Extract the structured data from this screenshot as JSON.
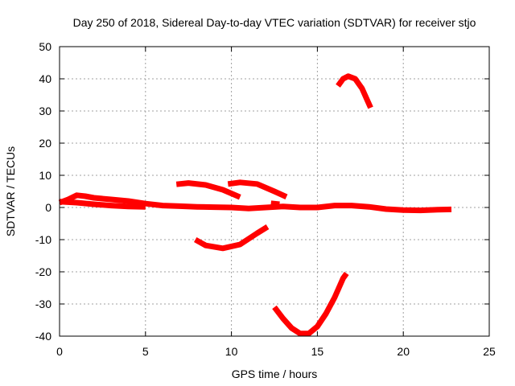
{
  "chart_data": {
    "type": "line",
    "title": "Day 250 of 2018, Sidereal Day-to-day VTEC variation (SDTVAR) for receiver stjo",
    "xlabel": "GPS time / hours",
    "ylabel": "SDTVAR / TECUs",
    "xlim": [
      0,
      25
    ],
    "ylim": [
      -40,
      50
    ],
    "xticks": [
      0,
      5,
      10,
      15,
      20,
      25
    ],
    "yticks": [
      -40,
      -30,
      -20,
      -10,
      0,
      10,
      20,
      30,
      40,
      50
    ],
    "grid": true,
    "legend": "none",
    "colors": {
      "series": "#ff0000",
      "grid": "#a0a0a0",
      "axes": "#000000"
    },
    "series": [
      {
        "values": [
          [
            0,
            1.5
          ],
          [
            0.5,
            2.5
          ],
          [
            1,
            3.8
          ],
          [
            1.5,
            3.5
          ],
          [
            2,
            3
          ],
          [
            3,
            2.5
          ],
          [
            4,
            2
          ],
          [
            5,
            1.2
          ],
          [
            6,
            0.6
          ],
          [
            7,
            0.4
          ],
          [
            8,
            0.2
          ],
          [
            9,
            0.1
          ],
          [
            10,
            0
          ],
          [
            11,
            -0.3
          ],
          [
            12,
            0
          ],
          [
            13,
            0.3
          ],
          [
            14,
            0
          ],
          [
            15,
            0
          ],
          [
            16,
            0.6
          ],
          [
            17,
            0.6
          ],
          [
            18,
            0.2
          ],
          [
            19,
            -0.5
          ],
          [
            20,
            -0.8
          ],
          [
            21,
            -0.9
          ],
          [
            22,
            -0.7
          ],
          [
            22.8,
            -0.6
          ]
        ]
      },
      {
        "values": [
          [
            0,
            1.8
          ],
          [
            1,
            1.5
          ],
          [
            2,
            1
          ],
          [
            3,
            0.6
          ],
          [
            4,
            0.3
          ],
          [
            5,
            0.2
          ]
        ]
      },
      {
        "values": [
          [
            6.8,
            7.2
          ],
          [
            7.5,
            7.6
          ],
          [
            8.5,
            7
          ],
          [
            9.5,
            5.5
          ],
          [
            10.5,
            3.2
          ]
        ]
      },
      {
        "values": [
          [
            9.8,
            7.3
          ],
          [
            10.5,
            7.8
          ],
          [
            11.5,
            7.3
          ],
          [
            12.5,
            5
          ],
          [
            13.2,
            3.3
          ]
        ]
      },
      {
        "values": [
          [
            12.3,
            1.3
          ],
          [
            12.8,
            1
          ]
        ]
      },
      {
        "values": [
          [
            7.9,
            -10
          ],
          [
            8.5,
            -11.8
          ],
          [
            9.5,
            -12.7
          ],
          [
            10.5,
            -11.5
          ],
          [
            11.5,
            -8
          ],
          [
            12.1,
            -6
          ]
        ]
      },
      {
        "values": [
          [
            12.5,
            -31
          ],
          [
            13,
            -34.5
          ],
          [
            13.5,
            -37.5
          ],
          [
            14,
            -39.2
          ],
          [
            14.5,
            -39.2
          ],
          [
            15,
            -37
          ],
          [
            15.5,
            -33
          ],
          [
            16,
            -28
          ],
          [
            16.5,
            -22
          ],
          [
            16.7,
            -20.5
          ]
        ]
      },
      {
        "values": [
          [
            16.2,
            37.8
          ],
          [
            16.5,
            40
          ],
          [
            16.8,
            40.8
          ],
          [
            17.2,
            40
          ],
          [
            17.6,
            37
          ],
          [
            18.1,
            31
          ]
        ]
      }
    ]
  }
}
